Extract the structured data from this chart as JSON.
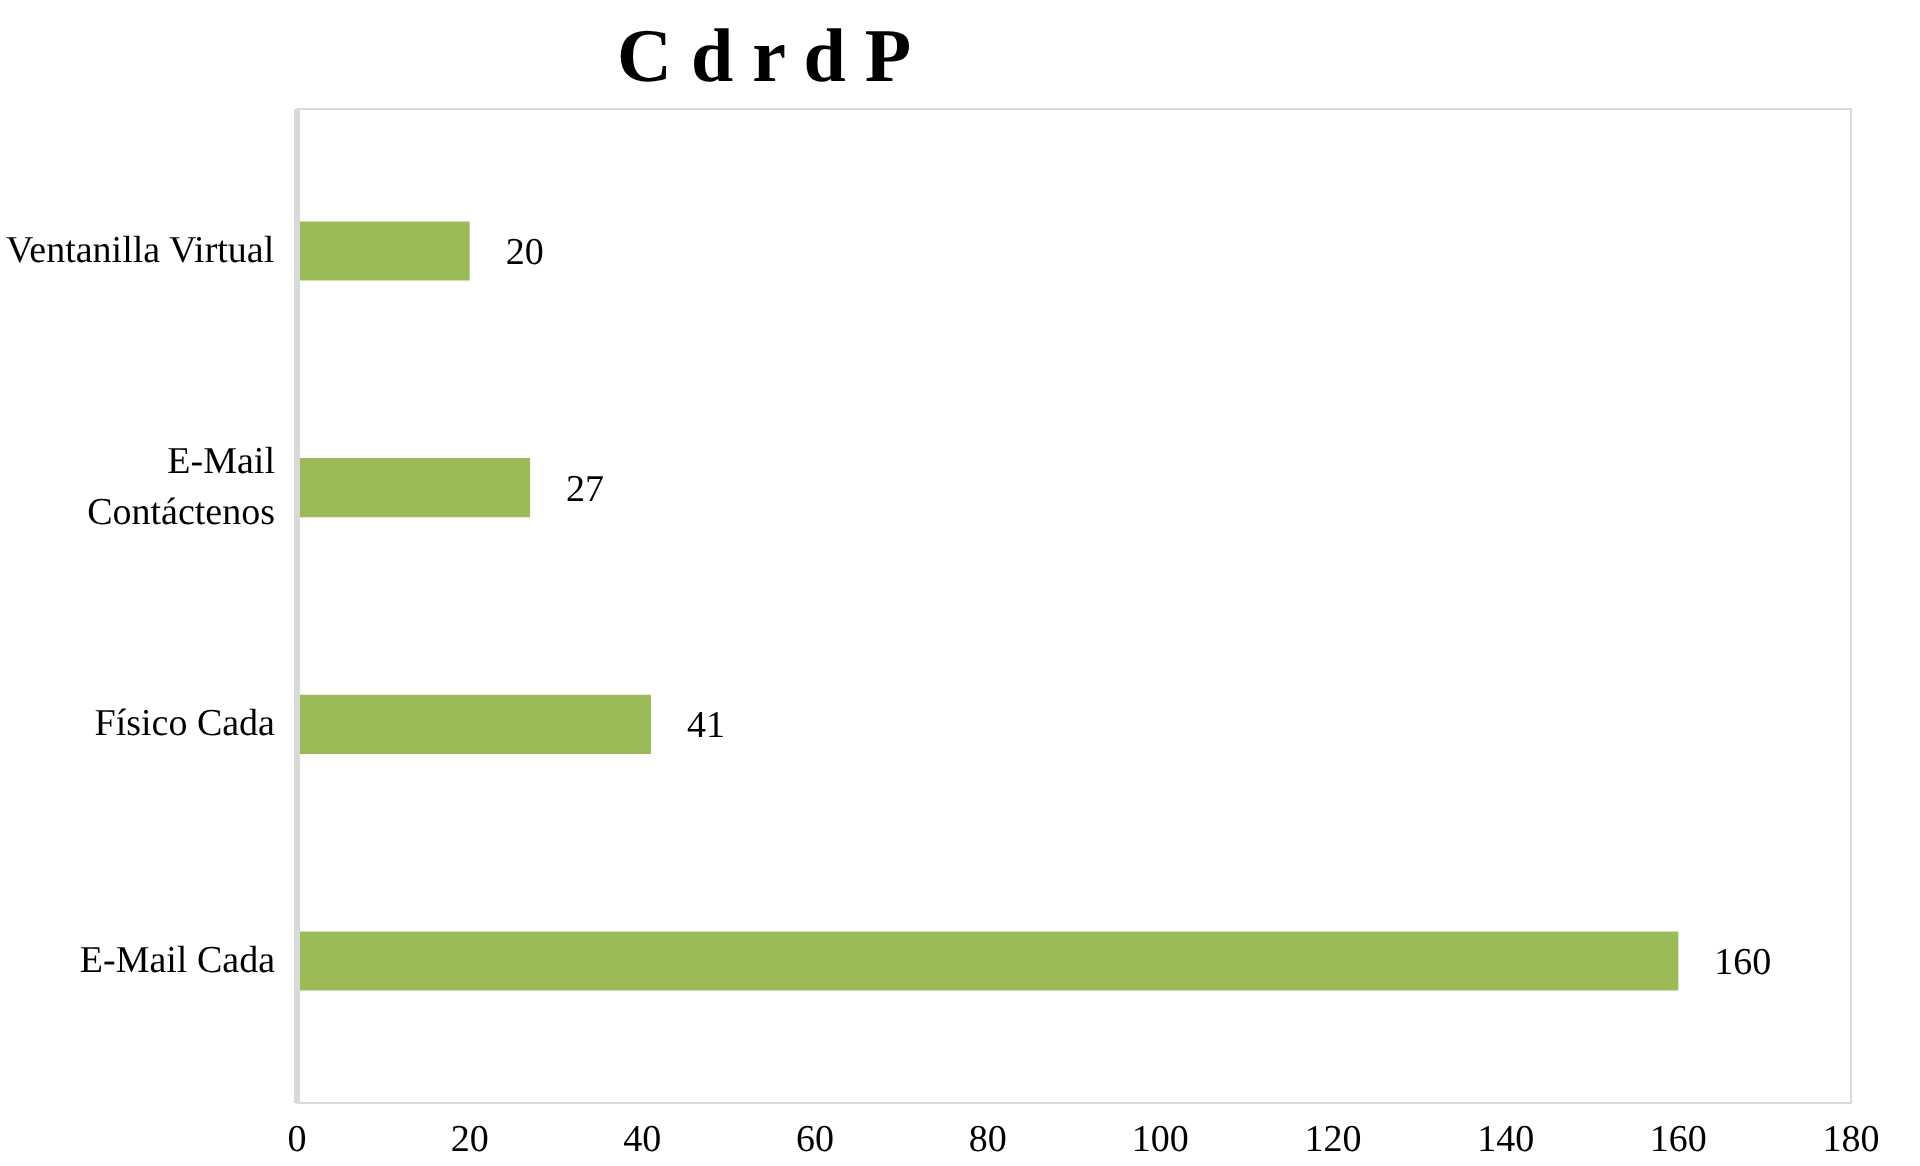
{
  "chart_data": {
    "type": "bar",
    "orientation": "horizontal",
    "title": "C          d   r              d   P",
    "categories": [
      "Ventanilla Virtual",
      "E-Mail Contáctenos",
      "Físico Cada",
      "E-Mail Cada"
    ],
    "values": [
      20,
      27,
      41,
      160
    ],
    "color": "#9bbb59",
    "xlim": [
      0,
      180
    ],
    "xticks": [
      0,
      20,
      40,
      60,
      80,
      100,
      120,
      140,
      160,
      180
    ],
    "data_labels": true,
    "grid": false
  }
}
